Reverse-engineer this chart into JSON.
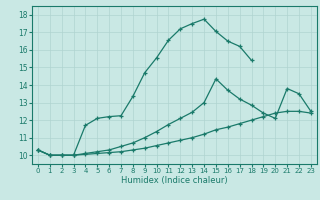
{
  "xlabel": "Humidex (Indice chaleur)",
  "xlim": [
    -0.5,
    23.5
  ],
  "ylim": [
    9.5,
    18.5
  ],
  "xticks": [
    0,
    1,
    2,
    3,
    4,
    5,
    6,
    7,
    8,
    9,
    10,
    11,
    12,
    13,
    14,
    15,
    16,
    17,
    18,
    19,
    20,
    21,
    22,
    23
  ],
  "yticks": [
    10,
    11,
    12,
    13,
    14,
    15,
    16,
    17,
    18
  ],
  "bg_color": "#c9e8e4",
  "line_color": "#1a7a6a",
  "grid_color": "#b0d4d0",
  "line1_x": [
    0,
    1,
    2,
    3,
    4,
    5,
    6,
    7,
    8,
    9,
    10,
    11,
    12,
    13,
    14,
    15,
    16,
    17,
    18
  ],
  "line1_y": [
    10.3,
    10.0,
    10.0,
    10.0,
    11.7,
    12.1,
    12.2,
    12.25,
    13.35,
    14.7,
    15.55,
    16.55,
    17.2,
    17.5,
    17.75,
    17.05,
    16.5,
    16.2,
    15.4
  ],
  "line2_x": [
    0,
    1,
    2,
    3,
    4,
    5,
    6,
    7,
    8,
    9,
    10,
    11,
    12,
    13,
    14,
    15,
    16,
    17,
    18,
    19,
    20,
    21,
    22,
    23
  ],
  "line2_y": [
    10.3,
    10.0,
    10.0,
    10.0,
    10.1,
    10.2,
    10.3,
    10.5,
    10.7,
    11.0,
    11.35,
    11.75,
    12.1,
    12.45,
    13.0,
    14.35,
    13.7,
    13.2,
    12.85,
    12.4,
    12.1,
    13.8,
    13.5,
    12.5
  ],
  "line3_x": [
    0,
    1,
    2,
    3,
    4,
    5,
    6,
    7,
    8,
    9,
    10,
    11,
    12,
    13,
    14,
    15,
    16,
    17,
    18,
    19,
    20,
    21,
    22,
    23
  ],
  "line3_y": [
    10.3,
    10.0,
    10.0,
    10.0,
    10.05,
    10.1,
    10.15,
    10.2,
    10.3,
    10.4,
    10.55,
    10.7,
    10.85,
    11.0,
    11.2,
    11.45,
    11.6,
    11.8,
    12.0,
    12.2,
    12.4,
    12.5,
    12.5,
    12.4
  ]
}
